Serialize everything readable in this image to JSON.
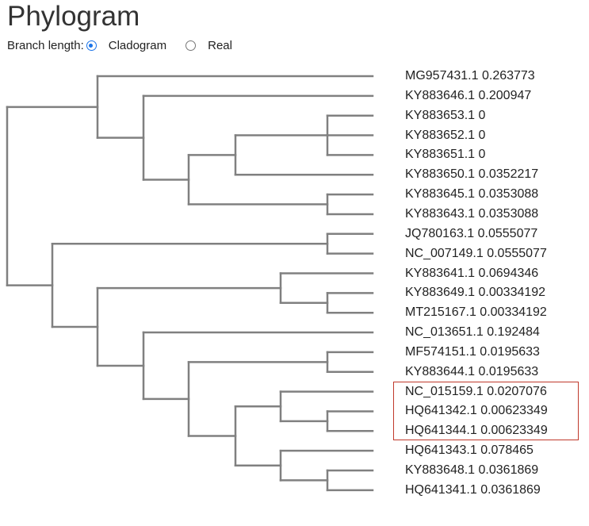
{
  "title": "Phylogram",
  "branch_length": {
    "label": "Branch length:",
    "options": [
      {
        "label": "Cladogram",
        "checked": true
      },
      {
        "label": "Real",
        "checked": false
      }
    ]
  },
  "colors": {
    "branch": "#808080",
    "highlight": "#c0392b",
    "radio": "#1a73e8"
  },
  "leaves": [
    {
      "id": "MG957431.1",
      "value": "0.263773"
    },
    {
      "id": "KY883646.1",
      "value": "0.200947"
    },
    {
      "id": "KY883653.1",
      "value": "0"
    },
    {
      "id": "KY883652.1",
      "value": "0"
    },
    {
      "id": "KY883651.1",
      "value": "0"
    },
    {
      "id": "KY883650.1",
      "value": "0.0352217"
    },
    {
      "id": "KY883645.1",
      "value": "0.0353088"
    },
    {
      "id": "KY883643.1",
      "value": "0.0353088"
    },
    {
      "id": "JQ780163.1",
      "value": "0.0555077"
    },
    {
      "id": "NC_007149.1",
      "value": "0.0555077"
    },
    {
      "id": "KY883641.1",
      "value": "0.0694346"
    },
    {
      "id": "KY883649.1",
      "value": "0.00334192"
    },
    {
      "id": "MT215167.1",
      "value": "0.00334192"
    },
    {
      "id": "NC_013651.1",
      "value": "0.192484"
    },
    {
      "id": "MF574151.1",
      "value": "0.0195633"
    },
    {
      "id": "KY883644.1",
      "value": "0.0195633"
    },
    {
      "id": "NC_015159.1",
      "value": "0.0207076"
    },
    {
      "id": "HQ641342.1",
      "value": "0.00623349"
    },
    {
      "id": "HQ641344.1",
      "value": "0.00623349"
    },
    {
      "id": "HQ641343.1",
      "value": "0.078465"
    },
    {
      "id": "KY883648.1",
      "value": "0.0361869"
    },
    {
      "id": "HQ641341.1",
      "value": "0.0361869"
    }
  ],
  "highlighted_leaves": [
    "NC_015159.1",
    "HQ641342.1",
    "HQ641344.1"
  ]
}
